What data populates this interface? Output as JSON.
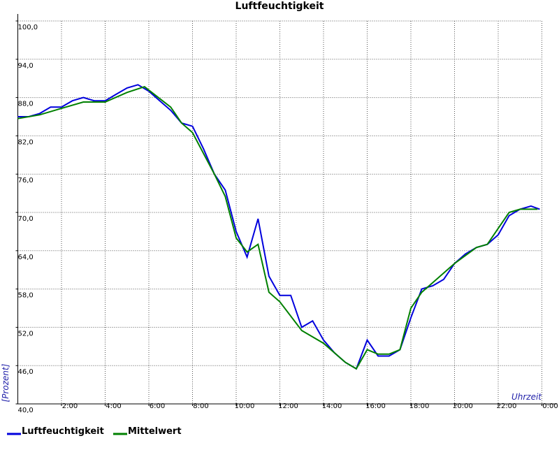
{
  "chart_data": {
    "type": "line",
    "title": "Luftfeuchtigkeit",
    "x_label": "Uhrzeit",
    "y_label": "[Prozent]",
    "xlim": [
      0,
      24
    ],
    "ylim": [
      40,
      100
    ],
    "grid": true,
    "legend": "bottom",
    "xticks": [
      {
        "value": 2,
        "label": "2:00"
      },
      {
        "value": 4,
        "label": "4:00"
      },
      {
        "value": 6,
        "label": "6:00"
      },
      {
        "value": 8,
        "label": "8:00"
      },
      {
        "value": 10,
        "label": "10:00"
      },
      {
        "value": 12,
        "label": "12:00"
      },
      {
        "value": 14,
        "label": "14:00"
      },
      {
        "value": 16,
        "label": "16:00"
      },
      {
        "value": 18,
        "label": "18:00"
      },
      {
        "value": 20,
        "label": "20:00"
      },
      {
        "value": 22,
        "label": "22:00"
      },
      {
        "value": 24,
        "label": "0:00"
      }
    ],
    "yticks": [
      {
        "value": 40,
        "label": "40,0"
      },
      {
        "value": 46,
        "label": "46,0"
      },
      {
        "value": 52,
        "label": "52,0"
      },
      {
        "value": 58,
        "label": "58,0"
      },
      {
        "value": 64,
        "label": "64,0"
      },
      {
        "value": 70,
        "label": "70,0"
      },
      {
        "value": 76,
        "label": "76,0"
      },
      {
        "value": 82,
        "label": "82,0"
      },
      {
        "value": 88,
        "label": "88,0"
      },
      {
        "value": 94,
        "label": "94,0"
      },
      {
        "value": 100,
        "label": "100,0"
      }
    ],
    "series": [
      {
        "name": "Luftfeuchtigkeit",
        "color": "#0000dd",
        "x": [
          0,
          0.5,
          1,
          1.5,
          2,
          2.5,
          3,
          3.5,
          4,
          4.5,
          5,
          5.5,
          6,
          6.5,
          7,
          7.5,
          8,
          8.5,
          9,
          9.5,
          10,
          10.5,
          11,
          11.5,
          12,
          12.5,
          13,
          13.5,
          14,
          14.5,
          15,
          15.5,
          16,
          16.5,
          17,
          17.5,
          18,
          18.5,
          19,
          19.5,
          20,
          20.5,
          21,
          21.5,
          22,
          22.5,
          23,
          23.5,
          23.9
        ],
        "values": [
          85,
          85,
          85.5,
          86.5,
          86.5,
          87.5,
          88,
          87.5,
          87.5,
          88.5,
          89.5,
          90,
          89,
          87.5,
          86,
          84,
          83.5,
          80,
          76,
          73.5,
          67,
          63,
          69,
          60,
          57,
          57,
          52,
          53,
          50,
          48,
          46.5,
          45.5,
          50,
          47.5,
          47.5,
          48.5,
          53.5,
          58,
          58.5,
          59.5,
          62,
          63.5,
          64.5,
          65,
          66.5,
          69.5,
          70.5,
          71,
          70.5
        ]
      },
      {
        "name": "Mittelwert",
        "color": "#008000",
        "x": [
          0,
          1,
          2,
          3,
          4,
          5,
          5.8,
          7,
          7.5,
          8,
          9,
          9.5,
          10,
          10.5,
          11,
          11.5,
          12,
          13,
          14,
          15,
          15.5,
          16,
          16.5,
          17,
          17.5,
          18,
          18.5,
          19,
          20,
          21,
          21.5,
          22,
          22.5,
          23,
          23.8
        ],
        "values": [
          84.7,
          85.3,
          86.3,
          87.3,
          87.3,
          88.8,
          89.7,
          86.5,
          84,
          82.5,
          76,
          72.5,
          66,
          63.8,
          65,
          57.5,
          56,
          51.5,
          49.5,
          46.5,
          45.5,
          48.5,
          47.8,
          47.8,
          48.5,
          55,
          57.5,
          59,
          62,
          64.5,
          65,
          67.5,
          70,
          70.5,
          70.5
        ]
      }
    ]
  }
}
